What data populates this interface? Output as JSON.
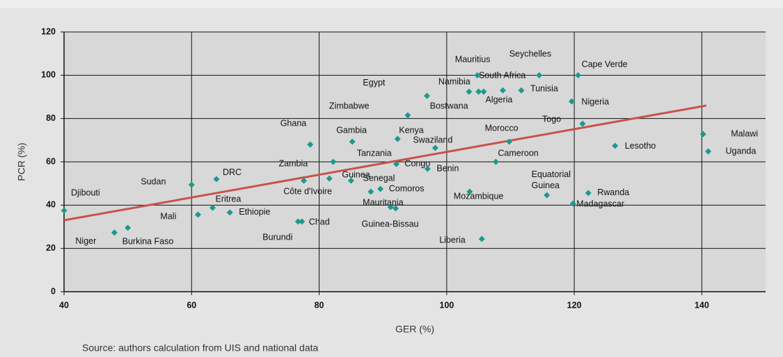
{
  "chart_data": {
    "type": "scatter",
    "xlabel": "GER (%)",
    "ylabel": "PCR (%)",
    "source": "Source: authors  calculation from UIS and national data",
    "xlim": [
      40,
      150
    ],
    "ylim": [
      0,
      120
    ],
    "xticks": [
      40,
      60,
      80,
      100,
      120,
      140
    ],
    "yticks": [
      0,
      20,
      40,
      60,
      80,
      100,
      120
    ],
    "grid": true,
    "series": [
      {
        "color": "#1b9a8c",
        "x": [
          40,
          47.9,
          50.0,
          61.0,
          60.0,
          63.9,
          63.3,
          66.0,
          76.7,
          77.3,
          77.6,
          78.6,
          81.6,
          82.2,
          85.0,
          85.2,
          89.6,
          88.1,
          91.2,
          92.0,
          92.3,
          92.1,
          98.2,
          97.0,
          96.9,
          93.9,
          105.0,
          103.5,
          104.8,
          105.8,
          108.8,
          111.7,
          114.5,
          120.6,
          119.6,
          121.3,
          109.8,
          107.7,
          103.6,
          105.5,
          115.7,
          122.2,
          119.8,
          126.4,
          140.2,
          141.0
        ],
        "values": [
          37.5,
          27.3,
          29.5,
          35.6,
          49.4,
          52.0,
          38.8,
          36.6,
          32.4,
          32.4,
          51.3,
          68.0,
          52.3,
          60.0,
          51.3,
          69.3,
          47.5,
          46.2,
          39.1,
          38.5,
          70.6,
          59.0,
          66.4,
          56.8,
          90.5,
          81.5,
          92.4,
          92.4,
          100,
          92.4,
          93.0,
          93.0,
          100,
          100,
          87.9,
          77.6,
          69.3,
          60.0,
          46.2,
          24.4,
          44.6,
          45.6,
          40.7,
          67.4,
          72.8,
          64.8
        ],
        "labels": [
          "Djibouti",
          "Niger",
          "Burkina Faso",
          "Mali",
          "Sudan",
          "DRC",
          "Eritrea",
          "Ethiopie",
          "Burundi",
          "Chad",
          "Zambia",
          "Ghana",
          "Côte d'Ivoire",
          "Tanzania",
          "Guinea",
          "Gambia",
          "Senegal",
          "Comoros",
          "Mauritania",
          "Guinea-Bissau",
          "Kenya",
          "Congo",
          "Swaziland",
          "Benin",
          "Egypt",
          "Zimbabwe",
          "Bostwana",
          "Namibia",
          "Mauritius",
          "South Africa",
          "Algeria",
          "Tunisia",
          "Seychelles",
          "Cape Verde",
          "Nigeria",
          "Togo",
          "Morocco",
          "Cameroon",
          "Mozambique",
          "Liberia",
          "Equatorial Guinea",
          "Rwanda",
          "Madagascar",
          "Lesotho",
          "Malawi",
          "Uganda"
        ]
      }
    ],
    "trend_line": {
      "color": "#c8524a",
      "x": [
        40,
        140.7
      ],
      "y": [
        33,
        86
      ]
    }
  }
}
